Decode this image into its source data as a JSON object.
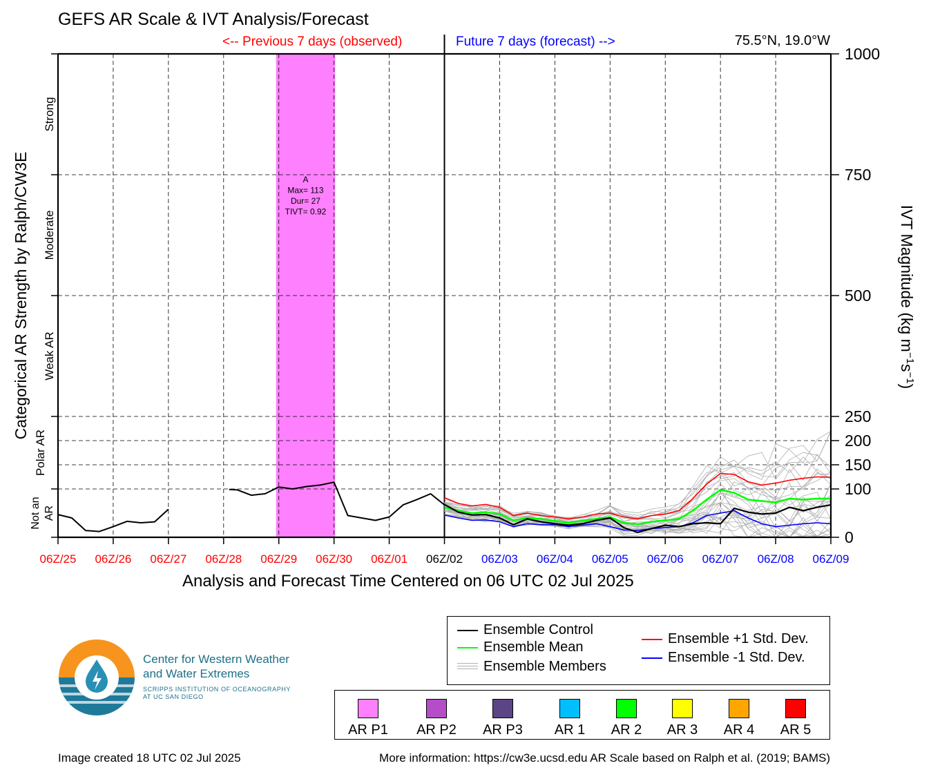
{
  "header": {
    "title": "GEFS AR Scale & IVT Analysis/Forecast",
    "previous_label": "<-- Previous 7 days (observed)",
    "future_label": "Future 7 days (forecast) -->",
    "location": "75.5°N, 19.0°W"
  },
  "colors": {
    "observed": "#ff0000",
    "forecast": "#0000ff",
    "control": "#000000",
    "mean": "#00ff00",
    "plus_std": "#ff0000",
    "minus_std": "#0000ff",
    "members": "#b0b0b0",
    "ar_p1": "#ff80ff"
  },
  "chart_data": {
    "type": "line",
    "title": "GEFS AR Scale & IVT Analysis/Forecast",
    "xlabel": "Analysis and Forecast Time Centered on 06 UTC 02 Jul 2025",
    "ylabel_left": "Categorical AR Strength by Ralph/CW3E",
    "ylabel_right": "IVT Magnitude (kg m−1s−1)",
    "ylim": [
      0,
      1000
    ],
    "right_ticks": [
      "0",
      "100",
      "150",
      "200",
      "250",
      "500",
      "750",
      "1000"
    ],
    "right_tick_values": [
      0,
      100,
      150,
      200,
      250,
      500,
      750,
      1000
    ],
    "categories_left": [
      "Not an AR",
      "Polar AR",
      "Weak AR",
      "Moderate",
      "Strong"
    ],
    "category_bounds": [
      0,
      100,
      250,
      500,
      750,
      1000
    ],
    "grid": true,
    "x_ticks": [
      {
        "label": "06Z/25",
        "group": "observed"
      },
      {
        "label": "06Z/26",
        "group": "observed"
      },
      {
        "label": "06Z/27",
        "group": "observed"
      },
      {
        "label": "06Z/28",
        "group": "observed"
      },
      {
        "label": "06Z/29",
        "group": "observed"
      },
      {
        "label": "06Z/30",
        "group": "observed"
      },
      {
        "label": "06Z/01",
        "group": "observed"
      },
      {
        "label": "06Z/02",
        "group": "analysis"
      },
      {
        "label": "06Z/03",
        "group": "forecast"
      },
      {
        "label": "06Z/04",
        "group": "forecast"
      },
      {
        "label": "06Z/05",
        "group": "forecast"
      },
      {
        "label": "06Z/06",
        "group": "forecast"
      },
      {
        "label": "06Z/07",
        "group": "forecast"
      },
      {
        "label": "06Z/08",
        "group": "forecast"
      },
      {
        "label": "06Z/09",
        "group": "forecast"
      }
    ],
    "ar_event": {
      "start_day": 3.95,
      "end_day": 5.02,
      "category": "AR P1",
      "label_lines": [
        "A",
        "Max= 113",
        "Dur= 27",
        "TIVT= 0.92"
      ]
    },
    "observed_segments": [
      {
        "x": [
          0,
          0.25,
          0.5,
          0.75,
          1,
          1.25,
          1.5,
          1.75,
          2
        ],
        "y": [
          47,
          40,
          14,
          12,
          22,
          33,
          30,
          32,
          58
        ]
      },
      {
        "x": [
          3.1,
          3.25,
          3.5,
          3.75,
          4,
          4.25,
          4.5,
          4.75,
          5,
          5.25,
          5.5,
          5.75,
          6,
          6.25,
          6.5,
          6.75,
          7
        ],
        "y": [
          99,
          98,
          87,
          90,
          104,
          100,
          105,
          108,
          114,
          45,
          40,
          35,
          42,
          67,
          78,
          90,
          67
        ]
      }
    ],
    "forecast_x": [
      7,
      7.25,
      7.5,
      7.75,
      8,
      8.25,
      8.5,
      8.75,
      9,
      9.25,
      9.5,
      9.75,
      10,
      10.25,
      10.5,
      10.75,
      11,
      11.25,
      11.5,
      11.75,
      12,
      12.25,
      12.5,
      12.75,
      13,
      13.25,
      13.5,
      13.75,
      14
    ],
    "series": [
      {
        "name": "Ensemble +1 Std. Dev.",
        "values": [
          82,
          70,
          65,
          68,
          62,
          45,
          50,
          45,
          42,
          38,
          42,
          48,
          50,
          42,
          38,
          45,
          48,
          55,
          80,
          110,
          132,
          130,
          115,
          108,
          112,
          118,
          122,
          125,
          124
        ]
      },
      {
        "name": "Ensemble Mean",
        "values": [
          62,
          55,
          50,
          52,
          48,
          35,
          40,
          38,
          34,
          30,
          34,
          38,
          42,
          30,
          27,
          32,
          35,
          38,
          55,
          78,
          98,
          92,
          78,
          75,
          72,
          80,
          78,
          80,
          80
        ]
      },
      {
        "name": "Ensemble -1 Std. Dev.",
        "values": [
          46,
          40,
          35,
          36,
          32,
          22,
          28,
          26,
          26,
          22,
          25,
          28,
          22,
          15,
          14,
          18,
          20,
          22,
          30,
          45,
          50,
          55,
          40,
          28,
          22,
          25,
          28,
          30,
          28
        ]
      },
      {
        "name": "Ensemble Control",
        "values": [
          68,
          52,
          46,
          47,
          40,
          26,
          38,
          32,
          28,
          25,
          28,
          35,
          40,
          20,
          10,
          18,
          25,
          22,
          28,
          30,
          28,
          60,
          52,
          48,
          50,
          62,
          55,
          62,
          67
        ]
      }
    ],
    "legend": {
      "lines": [
        "Ensemble Control",
        "Ensemble Mean",
        "Ensemble Members",
        "Ensemble +1 Std. Dev.",
        "Ensemble -1 Std. Dev."
      ],
      "categories": [
        {
          "label": "AR P1",
          "color": "#ff80ff"
        },
        {
          "label": "AR P2",
          "color": "#b54cc8"
        },
        {
          "label": "AR P3",
          "color": "#5c4585"
        },
        {
          "label": "AR 1",
          "color": "#00bfff"
        },
        {
          "label": "AR 2",
          "color": "#00ff00"
        },
        {
          "label": "AR 3",
          "color": "#ffff00"
        },
        {
          "label": "AR 4",
          "color": "#ffa500"
        },
        {
          "label": "AR 5",
          "color": "#ff0000"
        }
      ]
    }
  },
  "logo": {
    "name_line1": "Center for Western Weather",
    "name_line2": "and Water Extremes",
    "sub_line1": "SCRIPPS INSTITUTION OF OCEANOGRAPHY",
    "sub_line2": "AT UC SAN DIEGO"
  },
  "footer": {
    "created": "Image created 18 UTC 02 Jul 2025",
    "info": "More information: https://cw3e.ucsd.edu AR Scale based on Ralph et al. (2019; BAMS)"
  }
}
